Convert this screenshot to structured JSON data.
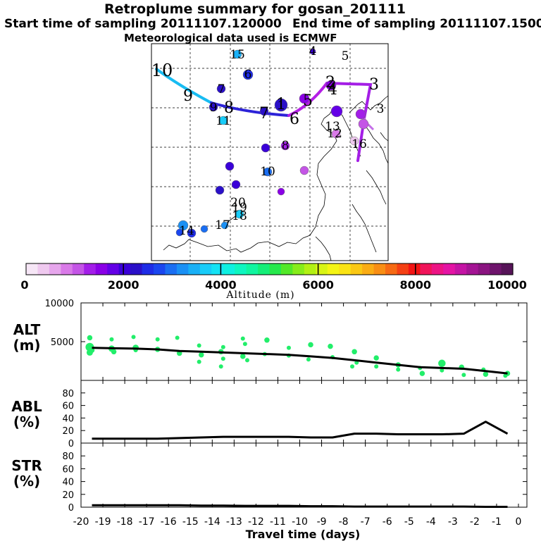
{
  "header": {
    "title": "Retroplume summary for gosan_201111",
    "start": "Start time of sampling 20111107.120000",
    "end": "End time of sampling 20111107.150000",
    "meteo": "Meteorological data used is ECMWF"
  },
  "chart_data": [
    {
      "type": "scatter",
      "name": "retroplume-map",
      "centroid_path_labels": [
        "10",
        "9",
        "8",
        "7",
        "6",
        "5",
        "4",
        "3",
        "2",
        "1"
      ],
      "cluster_labels": [
        "15",
        "6",
        "7",
        "9",
        "8",
        "11",
        "1",
        "4",
        "5",
        "2",
        "3",
        "12",
        "16",
        "13",
        "14",
        "17",
        "18",
        "19",
        "20",
        "10"
      ],
      "colorbar": {
        "title": "Altitude (m)",
        "range": [
          0,
          10000
        ],
        "ticks": [
          0,
          2000,
          4000,
          6000,
          8000,
          10000
        ],
        "colors": [
          "#f6e6f6",
          "#efc9ef",
          "#e6a6ec",
          "#d97ae8",
          "#c455e6",
          "#a31ee8",
          "#8a00e6",
          "#6400e6",
          "#3a00d8",
          "#2a10c8",
          "#1e2ce6",
          "#1a46ef",
          "#1a6ef2",
          "#1a90f4",
          "#19b0f6",
          "#18ccf8",
          "#14e2f4",
          "#0ef0e0",
          "#0ef6c0",
          "#10f5a0",
          "#14ee78",
          "#26e84c",
          "#52e828",
          "#86ec1a",
          "#b2f014",
          "#d8f414",
          "#f4f414",
          "#fae314",
          "#fac814",
          "#faac14",
          "#f88e14",
          "#f66a14",
          "#f44014",
          "#f21414",
          "#f0145a",
          "#ec1484",
          "#e414a4",
          "#c414a4",
          "#a41494",
          "#8a1480",
          "#6e146c",
          "#561458"
        ]
      }
    },
    {
      "type": "scatter",
      "name": "ALT",
      "ylabel": "ALT (m)",
      "ylim": [
        0,
        10000
      ],
      "yticks": [
        5000,
        10000
      ],
      "x": [
        -19.5,
        -18.5,
        -17.5,
        -16.5,
        -15.5,
        -14.5,
        -13.5,
        -12.5,
        -11.5,
        -10.5,
        -9.5,
        -8.5,
        -7.5,
        -6.5,
        -5.5,
        -4.5,
        -3.5,
        -2.5,
        -1.5,
        -0.5
      ],
      "line": [
        4200,
        4150,
        4100,
        4000,
        3800,
        3700,
        3600,
        3500,
        3400,
        3300,
        3100,
        2900,
        2600,
        2300,
        2000,
        1700,
        1600,
        1500,
        1200,
        900
      ],
      "points_x": [
        -19.6,
        -19.6,
        -19.6,
        -19.5,
        -18.6,
        -18.6,
        -18.5,
        -17.6,
        -17.5,
        -17.5,
        -16.5,
        -16.5,
        -15.6,
        -15.5,
        -14.6,
        -14.5,
        -14.6,
        -13.5,
        -13.6,
        -13.5,
        -12.6,
        -12.5,
        -12.6,
        -12.4,
        -11.5,
        -11.6,
        -10.5,
        -10.5,
        -9.5,
        -9.6,
        -8.6,
        -8.5,
        -7.5,
        -7.4,
        -6.5,
        -6.5,
        -5.5,
        -5.5,
        -4.5,
        -4.4,
        -3.5,
        -3.5,
        -2.6,
        -2.5,
        -1.6,
        -1.5,
        -0.5,
        -0.6,
        -7.6,
        -13.6
      ],
      "points_y": [
        5500,
        4300,
        3600,
        3900,
        5300,
        4100,
        3700,
        5600,
        4200,
        3900,
        5300,
        4000,
        5500,
        3500,
        4500,
        3300,
        2400,
        4300,
        3700,
        2800,
        5400,
        4700,
        3100,
        2600,
        5200,
        3400,
        4200,
        3200,
        4600,
        2700,
        4400,
        3000,
        3700,
        2300,
        2900,
        1800,
        2000,
        1400,
        1600,
        900,
        2200,
        1300,
        1700,
        700,
        1400,
        800,
        900,
        600,
        1800,
        1800
      ],
      "points_size": [
        5,
        8,
        6,
        5,
        4,
        6,
        5,
        4,
        6,
        4,
        4,
        5,
        4,
        5,
        4,
        5,
        4,
        4,
        5,
        4,
        4,
        4,
        5,
        4,
        5,
        4,
        4,
        4,
        5,
        4,
        5,
        4,
        5,
        4,
        5,
        4,
        5,
        4,
        4,
        5,
        7,
        4,
        5,
        4,
        4,
        5,
        5,
        4,
        4,
        4
      ]
    },
    {
      "type": "line",
      "name": "ABL",
      "ylabel": "ABL (%)",
      "ylim": [
        0,
        100
      ],
      "yticks": [
        0,
        20,
        40,
        60,
        80
      ],
      "x": [
        -19.5,
        -18.5,
        -17.5,
        -16.5,
        -15.5,
        -14.5,
        -13.5,
        -12.5,
        -11.5,
        -10.5,
        -9.5,
        -8.5,
        -7.5,
        -6.5,
        -5.5,
        -4.5,
        -3.5,
        -2.5,
        -1.5,
        -0.5
      ],
      "values": [
        7,
        7,
        7,
        7,
        8,
        9,
        10,
        10,
        10,
        10,
        9,
        9,
        15,
        15,
        14,
        14,
        14,
        15,
        34,
        15
      ]
    },
    {
      "type": "line",
      "name": "STR",
      "ylabel": "STR (%)",
      "ylim": [
        0,
        100
      ],
      "yticks": [
        0,
        20,
        40,
        60,
        80
      ],
      "xlabel": "Travel time (days)",
      "xticks": [
        -20,
        -19,
        -18,
        -17,
        -16,
        -15,
        -14,
        -13,
        -12,
        -11,
        -10,
        -9,
        -8,
        -7,
        -6,
        -5,
        -4,
        -3,
        -2,
        -1,
        0
      ],
      "x": [
        -19.5,
        -18.5,
        -17.5,
        -16.5,
        -15.5,
        -14.5,
        -13.5,
        -12.5,
        -11.5,
        -10.5,
        -9.5,
        -8.5,
        -7.5,
        -6.5,
        -5.5,
        -4.5,
        -3.5,
        -2.5,
        -1.5,
        -0.5
      ],
      "values": [
        3,
        3,
        3,
        3,
        3,
        2.5,
        2.5,
        2,
        2,
        2,
        1.5,
        1.5,
        1,
        1,
        1,
        1,
        1,
        1,
        0.5,
        0.5
      ]
    }
  ]
}
